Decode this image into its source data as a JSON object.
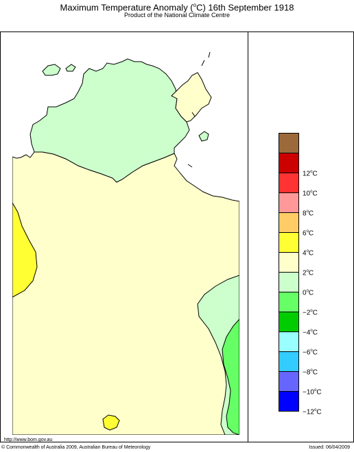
{
  "title": {
    "prefix": "Maximum Temperature Anomaly (",
    "unit_sup": "o",
    "suffix": "C)  16th September 1918"
  },
  "subtitle": "Product of the National Climate Centre",
  "legend": {
    "items": [
      {
        "label_value": "",
        "color": "#9c6a3a"
      },
      {
        "label_value": "12",
        "color": "#cc0000"
      },
      {
        "label_value": "10",
        "color": "#ff3333"
      },
      {
        "label_value": "8",
        "color": "#ff9999"
      },
      {
        "label_value": "6",
        "color": "#ffcc66"
      },
      {
        "label_value": "4",
        "color": "#ffff33"
      },
      {
        "label_value": "2",
        "color": "#ffffcc"
      },
      {
        "label_value": "0",
        "color": "#ccffcc"
      },
      {
        "label_value": "−2",
        "color": "#66ff66"
      },
      {
        "label_value": "−4",
        "color": "#00cc00"
      },
      {
        "label_value": "−6",
        "color": "#99ffff"
      },
      {
        "label_value": "−8",
        "color": "#33ccff"
      },
      {
        "label_value": "−10",
        "color": "#6666ff"
      },
      {
        "label_value": "−12",
        "color": "#0000ff"
      }
    ],
    "unit_sup": "o",
    "unit": "C"
  },
  "map": {
    "land_color": "#ffffcc",
    "cool_color": "#ccffcc",
    "colder_color": "#66ff66",
    "warm_color": "#ffff33"
  },
  "footer": {
    "url": "http://www.bom.gov.au",
    "copyright": "© Commonwealth of Australia 2009, Australian Bureau of Meteorology",
    "issued": "Issued: 06/04/2009"
  }
}
